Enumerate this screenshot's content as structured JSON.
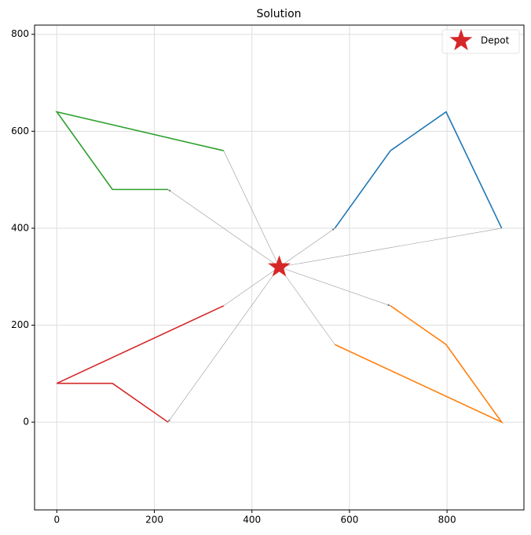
{
  "chart_data": {
    "type": "route",
    "title": "Solution",
    "xlim": [
      -45.6,
      957.6
    ],
    "ylim": [
      -181,
      819
    ],
    "xticks": [
      0,
      200,
      400,
      600,
      800
    ],
    "yticks": [
      0,
      200,
      400,
      600,
      800
    ],
    "grid": true,
    "legend_position": "upper right",
    "depot": {
      "label": "Depot",
      "x": 456,
      "y": 320,
      "color": "#d62728"
    },
    "link_color": "#999999",
    "routes": [
      {
        "color": "#1f77b4",
        "x": [
          570,
          684,
          798,
          912
        ],
        "y": [
          400,
          560,
          640,
          400
        ]
      },
      {
        "color": "#ff7f0e",
        "x": [
          684,
          798,
          912,
          570
        ],
        "y": [
          240,
          160,
          0,
          160
        ]
      },
      {
        "color": "#2ca02c",
        "x": [
          228,
          114,
          0,
          342
        ],
        "y": [
          480,
          480,
          640,
          560
        ]
      },
      {
        "color": "#d62728",
        "x": [
          228,
          114,
          0,
          342
        ],
        "y": [
          0,
          80,
          80,
          240
        ]
      }
    ]
  }
}
